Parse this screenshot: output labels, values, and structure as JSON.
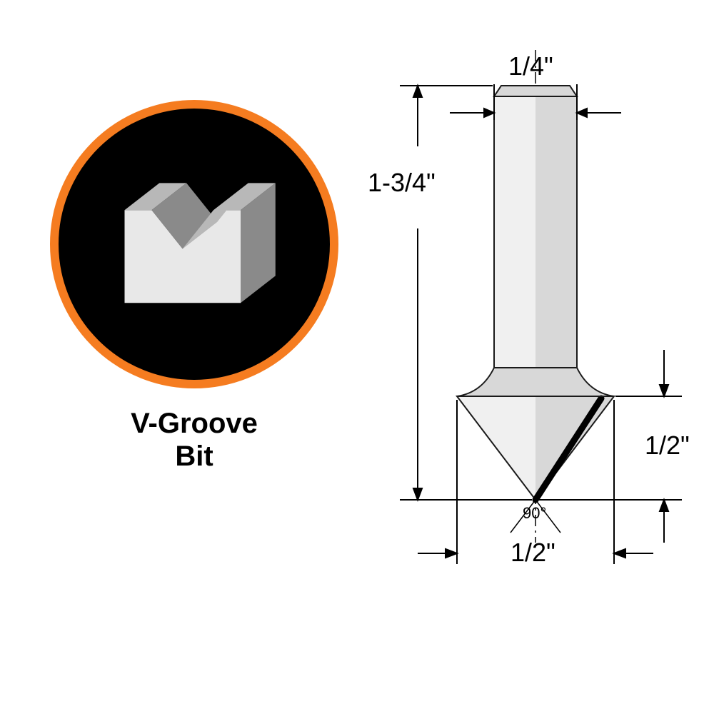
{
  "title": "V-Groove\nBit",
  "title_fontsize": 40,
  "badge": {
    "border_color": "#f57c20",
    "bg_color": "#000000",
    "block_light": "#e8e8e8",
    "block_mid": "#b8b8b8",
    "block_dark": "#8a8a8a"
  },
  "bit": {
    "body_light": "#f0f0f0",
    "body_mid": "#d8d8d8",
    "body_dark": "#bcbcbc",
    "edge_dark": "#1a1a1a",
    "line_color": "#000000",
    "dim_line_color": "#000000",
    "dim_fontsize": 36,
    "angle_fontsize": 22
  },
  "dimensions": {
    "shank_width": "1/4\"",
    "overall_height": "1-3/4\"",
    "tip_height": "1/2\"",
    "tip_width": "1/2\"",
    "angle": "90°"
  }
}
